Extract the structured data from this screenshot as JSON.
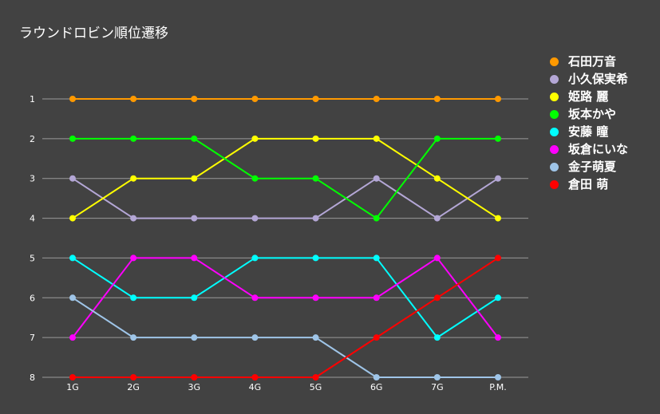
{
  "chart_data": {
    "type": "line",
    "title": "ラウンドロビン順位遷移",
    "categories": [
      "1G",
      "2G",
      "3G",
      "4G",
      "5G",
      "6G",
      "7G",
      "P.M."
    ],
    "y_ticks": [
      1,
      2,
      3,
      4,
      5,
      6,
      7,
      8
    ],
    "ylim": [
      1,
      8
    ],
    "y_reversed": true,
    "grid": true,
    "legend_position": "right",
    "series": [
      {
        "name": "石田万音",
        "color": "#ff9900",
        "values": [
          1,
          1,
          1,
          1,
          1,
          1,
          1,
          1
        ]
      },
      {
        "name": "小久保実希",
        "color": "#b4a7d6",
        "values": [
          3,
          4,
          4,
          4,
          4,
          3,
          4,
          3
        ]
      },
      {
        "name": "姫路 麗",
        "color": "#ffff00",
        "values": [
          4,
          3,
          3,
          2,
          2,
          2,
          3,
          4
        ]
      },
      {
        "name": "坂本かや",
        "color": "#00ff00",
        "values": [
          2,
          2,
          2,
          3,
          3,
          4,
          2,
          2
        ]
      },
      {
        "name": "安藤 瞳",
        "color": "#00ffff",
        "values": [
          5,
          6,
          6,
          5,
          5,
          5,
          7,
          6
        ]
      },
      {
        "name": "坂倉にいな",
        "color": "#ff00ff",
        "values": [
          7,
          5,
          5,
          6,
          6,
          6,
          5,
          7
        ]
      },
      {
        "name": "金子萌夏",
        "color": "#9fc5e8",
        "values": [
          6,
          7,
          7,
          7,
          7,
          8,
          8,
          8
        ]
      },
      {
        "name": "倉田 萌",
        "color": "#ff0000",
        "values": [
          8,
          8,
          8,
          8,
          8,
          7,
          6,
          5
        ]
      }
    ]
  }
}
